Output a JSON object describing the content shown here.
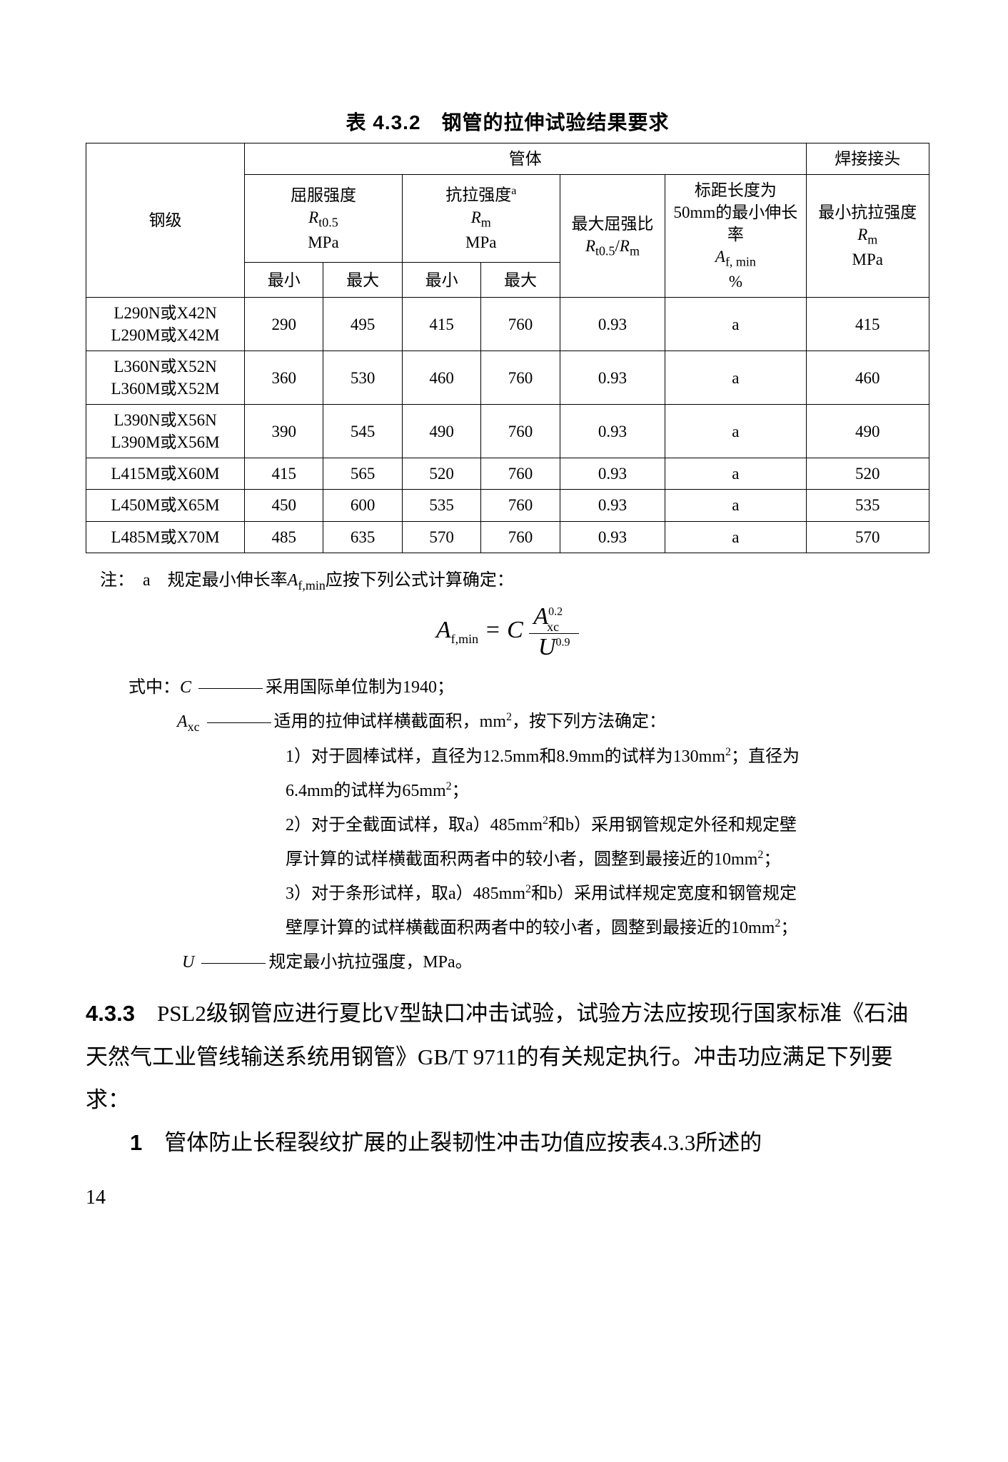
{
  "table": {
    "title": "表 4.3.2　钢管的拉伸试验结果要求",
    "headers": {
      "grade": "钢级",
      "body": "管体",
      "weld": "焊接接头",
      "yield_html": "屈服强度<br><span class='it'>R</span><span class='sub'>t0.5</span><br>MPa",
      "tensile_html": "抗拉强度<span class='sup'>a</span><br><span class='it'>R</span><span class='sub rn'>m</span><br>MPa",
      "ratio_html": "最大屈强比<br><span class='it'>R</span><span class='sub'>t0.5</span>/<span class='it'>R</span><span class='sub rn'>m</span>",
      "elong_html": "标距长度为<br>50mm的最小伸长率<br><span class='it'>A</span><span class='sub'>f, min</span><br>%",
      "weld_tensile_html": "最小抗拉强度<br><span class='it'>R</span><span class='sub rn'>m</span><br>MPa",
      "min": "最小",
      "max": "最大"
    },
    "rows": [
      {
        "grade_html": "L290N或X42N<br>L290M或X42M",
        "ymin": "290",
        "ymax": "495",
        "tmin": "415",
        "tmax": "760",
        "ratio": "0.93",
        "elong": "a",
        "weld": "415"
      },
      {
        "grade_html": "L360N或X52N<br>L360M或X52M",
        "ymin": "360",
        "ymax": "530",
        "tmin": "460",
        "tmax": "760",
        "ratio": "0.93",
        "elong": "a",
        "weld": "460"
      },
      {
        "grade_html": "L390N或X56N<br>L390M或X56M",
        "ymin": "390",
        "ymax": "545",
        "tmin": "490",
        "tmax": "760",
        "ratio": "0.93",
        "elong": "a",
        "weld": "490"
      },
      {
        "grade_html": "L415M或X60M",
        "ymin": "415",
        "ymax": "565",
        "tmin": "520",
        "tmax": "760",
        "ratio": "0.93",
        "elong": "a",
        "weld": "520"
      },
      {
        "grade_html": "L450M或X65M",
        "ymin": "450",
        "ymax": "600",
        "tmin": "535",
        "tmax": "760",
        "ratio": "0.93",
        "elong": "a",
        "weld": "535"
      },
      {
        "grade_html": "L485M或X70M",
        "ymin": "485",
        "ymax": "635",
        "tmin": "570",
        "tmax": "760",
        "ratio": "0.93",
        "elong": "a",
        "weld": "570"
      }
    ]
  },
  "notes": {
    "lead_html": "注：　a　规定最小伸长率<span class='it'>A</span><span class='sub'>f,min</span>应按下列公式计算确定：",
    "formula": {
      "left_html": "<span class='it'>A</span><span class='sub' style='font-style:normal;'>f,min</span> = <span class='it'>C</span>",
      "num_html": "<span class='it'>A</span><span class='sup' style='font-style:normal;'>0.2</span><span class='sub' style='font-style:normal;position:relative;left:-22px;top:2px;'>xc</span>",
      "den_html": "<span class='it'>U</span><span class='sup' style='font-style:normal;'>0.9</span>"
    },
    "where": "式中：",
    "c_line_html": "<span class='it'>C</span> <span class='dash'></span>采用国际单位制为1940；",
    "axc_line_html": "<span class='it'>A</span><span class='sub'>xc</span> <span class='dash'></span>适用的拉伸试样横截面积，mm<span class='sup'>2</span>，按下列方法确定：",
    "item1a_html": "1）对于圆棒试样，直径为12.5mm和8.9mm的试样为130mm<span class='sup'>2</span>；直径为",
    "item1b_html": "6.4mm的试样为65mm<span class='sup'>2</span>；",
    "item2a_html": "2）对于全截面试样，取a）485mm<span class='sup'>2</span>和b）采用钢管规定外径和规定壁",
    "item2b_html": "厚计算的试样横截面积两者中的较小者，圆整到最接近的10mm<span class='sup'>2</span>；",
    "item3a_html": "3）对于条形试样，取a）485mm<span class='sup'>2</span>和b）采用试样规定宽度和钢管规定",
    "item3b_html": "壁厚计算的试样横截面积两者中的较小者，圆整到最接近的10mm<span class='sup'>2</span>；",
    "u_line_html": "<span class='it'>U</span> <span class='dash'></span>规定最小抗拉强度，MPa。"
  },
  "body": {
    "p1_label": "4.3.3",
    "p1_text": "　PSL2级钢管应进行夏比V型缺口冲击试验，试验方法应按现行国家标准《石油天然气工业管线输送系统用钢管》GB/T 9711的有关规定执行。冲击功应满足下列要求：",
    "p2_label": "1",
    "p2_text": "　管体防止长程裂纹扩展的止裂韧性冲击功值应按表4.3.3所述的"
  },
  "page_number": "14"
}
